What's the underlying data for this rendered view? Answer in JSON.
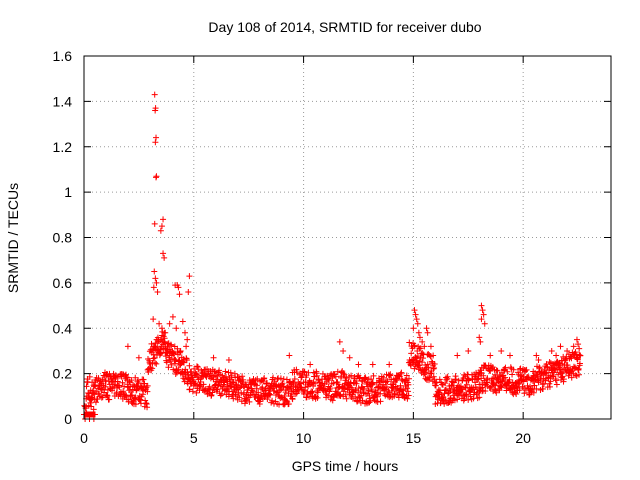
{
  "chart_data": {
    "type": "scatter",
    "title": "Day 108 of 2014, SRMTID for receiver dubo",
    "xlabel": "GPS time / hours",
    "ylabel": "SRMTID / TECUs",
    "xlim": [
      0,
      24
    ],
    "ylim": [
      0,
      1.6
    ],
    "x_ticks": [
      0,
      5,
      10,
      15,
      20
    ],
    "x_tick_labels": [
      "0",
      "5",
      "10",
      "15",
      "20"
    ],
    "y_ticks": [
      0,
      0.2,
      0.4,
      0.6,
      0.8,
      1.0,
      1.2,
      1.4,
      1.6
    ],
    "y_tick_labels": [
      "0",
      "0.2",
      "0.4",
      "0.6",
      "0.8",
      "1",
      "1.2",
      "1.4",
      "1.6"
    ],
    "grid": true,
    "marker": "+",
    "series_color": "#ff0000",
    "series_name": "SRMTID",
    "segments": [
      {
        "x": [
          0.0,
          0.5
        ],
        "y": [
          0.0,
          0.0
        ]
      },
      {
        "x": [
          0.1,
          0.5
        ],
        "y": [
          0.12,
          0.14
        ]
      },
      {
        "x": [
          0.5,
          1.0
        ],
        "y": [
          0.12,
          0.16
        ]
      },
      {
        "x": [
          1.0,
          2.0
        ],
        "y": [
          0.14,
          0.14
        ]
      },
      {
        "x": [
          2.0,
          2.9
        ],
        "y": [
          0.13,
          0.11
        ]
      },
      {
        "x": [
          2.9,
          3.7
        ],
        "y": [
          0.25,
          0.35
        ]
      },
      {
        "x": [
          3.7,
          4.8
        ],
        "y": [
          0.3,
          0.2
        ]
      },
      {
        "x": [
          4.8,
          7.0
        ],
        "y": [
          0.18,
          0.14
        ]
      },
      {
        "x": [
          7.0,
          9.5
        ],
        "y": [
          0.13,
          0.12
        ]
      },
      {
        "x": [
          9.5,
          11.5
        ],
        "y": [
          0.16,
          0.14
        ]
      },
      {
        "x": [
          11.5,
          13.0
        ],
        "y": [
          0.16,
          0.12
        ]
      },
      {
        "x": [
          13.0,
          14.8
        ],
        "y": [
          0.13,
          0.15
        ]
      },
      {
        "x": [
          14.8,
          16.0
        ],
        "y": [
          0.3,
          0.2
        ]
      },
      {
        "x": [
          16.0,
          18.0
        ],
        "y": [
          0.12,
          0.15
        ]
      },
      {
        "x": [
          18.0,
          20.5
        ],
        "y": [
          0.18,
          0.16
        ]
      },
      {
        "x": [
          20.5,
          22.6
        ],
        "y": [
          0.17,
          0.25
        ]
      }
    ],
    "points": [
      [
        0.05,
        0.0
      ],
      [
        0.25,
        0.0
      ],
      [
        0.45,
        0.0
      ],
      [
        3.22,
        1.43
      ],
      [
        3.26,
        1.37
      ],
      [
        3.24,
        1.36
      ],
      [
        3.28,
        1.24
      ],
      [
        3.25,
        1.22
      ],
      [
        3.3,
        1.07
      ],
      [
        3.28,
        1.065
      ],
      [
        3.22,
        0.86
      ],
      [
        3.6,
        0.88
      ],
      [
        3.55,
        0.85
      ],
      [
        3.5,
        0.83
      ],
      [
        3.6,
        0.73
      ],
      [
        3.65,
        0.71
      ],
      [
        3.2,
        0.65
      ],
      [
        3.25,
        0.62
      ],
      [
        3.3,
        0.6
      ],
      [
        3.18,
        0.58
      ],
      [
        3.35,
        0.56
      ],
      [
        4.15,
        0.59
      ],
      [
        4.25,
        0.59
      ],
      [
        4.3,
        0.58
      ],
      [
        4.35,
        0.55
      ],
      [
        4.8,
        0.63
      ],
      [
        4.75,
        0.56
      ],
      [
        3.15,
        0.44
      ],
      [
        3.42,
        0.42
      ],
      [
        3.55,
        0.4
      ],
      [
        3.7,
        0.38
      ],
      [
        3.9,
        0.42
      ],
      [
        4.05,
        0.45
      ],
      [
        4.2,
        0.4
      ],
      [
        4.5,
        0.43
      ],
      [
        4.6,
        0.38
      ],
      [
        4.7,
        0.35
      ],
      [
        3.25,
        0.32
      ],
      [
        3.38,
        0.3
      ],
      [
        3.5,
        0.29
      ],
      [
        3.6,
        0.31
      ],
      [
        3.8,
        0.3
      ],
      [
        4.0,
        0.28
      ],
      [
        4.4,
        0.3
      ],
      [
        4.65,
        0.32
      ],
      [
        2.0,
        0.32
      ],
      [
        2.5,
        0.27
      ],
      [
        5.9,
        0.27
      ],
      [
        6.6,
        0.26
      ],
      [
        9.35,
        0.28
      ],
      [
        10.3,
        0.24
      ],
      [
        11.65,
        0.34
      ],
      [
        11.8,
        0.3
      ],
      [
        12.1,
        0.27
      ],
      [
        12.5,
        0.24
      ],
      [
        13.15,
        0.24
      ],
      [
        13.9,
        0.24
      ],
      [
        15.05,
        0.48
      ],
      [
        15.1,
        0.46
      ],
      [
        15.15,
        0.44
      ],
      [
        15.2,
        0.42
      ],
      [
        15.0,
        0.4
      ],
      [
        15.25,
        0.38
      ],
      [
        15.3,
        0.36
      ],
      [
        15.4,
        0.34
      ],
      [
        15.5,
        0.32
      ],
      [
        15.6,
        0.4
      ],
      [
        15.65,
        0.38
      ],
      [
        15.8,
        0.32
      ],
      [
        15.9,
        0.28
      ],
      [
        18.1,
        0.5
      ],
      [
        18.15,
        0.48
      ],
      [
        18.2,
        0.46
      ],
      [
        18.1,
        0.44
      ],
      [
        18.25,
        0.42
      ],
      [
        18.0,
        0.36
      ],
      [
        18.05,
        0.34
      ],
      [
        17.0,
        0.28
      ],
      [
        17.5,
        0.3
      ],
      [
        18.5,
        0.28
      ],
      [
        19.0,
        0.3
      ],
      [
        19.4,
        0.28
      ],
      [
        20.6,
        0.28
      ],
      [
        20.7,
        0.26
      ],
      [
        21.3,
        0.3
      ],
      [
        21.5,
        0.28
      ],
      [
        21.7,
        0.32
      ],
      [
        22.0,
        0.3
      ],
      [
        22.3,
        0.32
      ],
      [
        22.45,
        0.35
      ],
      [
        22.5,
        0.33
      ],
      [
        22.55,
        0.31
      ],
      [
        22.6,
        0.28
      ]
    ]
  }
}
